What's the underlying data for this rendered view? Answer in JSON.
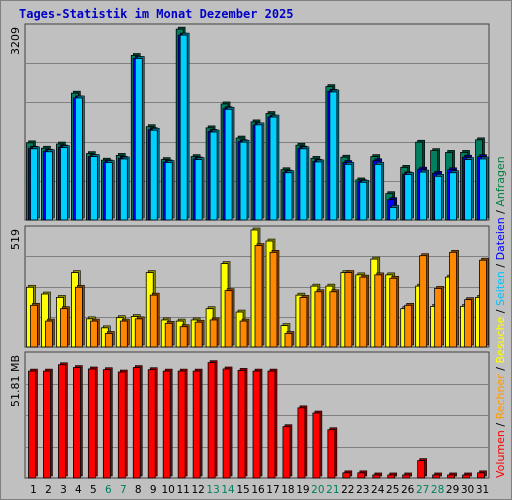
{
  "title": "Tages-Statistik im Monat Dezember 2025",
  "panel_labels": {
    "hits_max": "3209",
    "visits_max": "519",
    "volume_max": "51.81 MB"
  },
  "legend": [
    {
      "text": "Volumen",
      "color": "#ff0000"
    },
    {
      "text": " / ",
      "color": "#000000"
    },
    {
      "text": "Rechner",
      "color": "#ff9900"
    },
    {
      "text": " / ",
      "color": "#000000"
    },
    {
      "text": "Besuche",
      "color": "#ffff00"
    },
    {
      "text": " / ",
      "color": "#000000"
    },
    {
      "text": "Seiten",
      "color": "#00c0ff"
    },
    {
      "text": " / ",
      "color": "#000000"
    },
    {
      "text": "Dateien",
      "color": "#0000ff"
    },
    {
      "text": " / ",
      "color": "#000000"
    },
    {
      "text": "Anfragen",
      "color": "#008040"
    }
  ],
  "colors": {
    "anfragen": "#008060",
    "dateien": "#0000ff",
    "seiten": "#00d0ff",
    "besuche": "#ffff00",
    "rechner": "#ff8800",
    "volumen": "#ff0000",
    "day_normal": "#000000",
    "day_weekend": "#008060",
    "title": "#0000c8",
    "grid": "#808080"
  },
  "chart_data": [
    {
      "type": "bar",
      "name": "hits",
      "ylim": [
        0,
        3209
      ],
      "ylabel": "3209",
      "categories": [
        "1",
        "2",
        "3",
        "4",
        "5",
        "6",
        "7",
        "8",
        "9",
        "10",
        "11",
        "12",
        "13",
        "14",
        "15",
        "16",
        "17",
        "18",
        "19",
        "20",
        "21",
        "22",
        "23",
        "24",
        "25",
        "26",
        "27",
        "28",
        "29",
        "30",
        "31"
      ],
      "weekend_days": [
        "6",
        "7",
        "13",
        "14",
        "20",
        "21",
        "27",
        "28"
      ],
      "series": [
        {
          "name": "Anfragen",
          "values": [
            1290,
            1200,
            1270,
            2120,
            1110,
            1000,
            1080,
            2750,
            1560,
            1010,
            3190,
            1060,
            1540,
            1940,
            1370,
            1640,
            1780,
            840,
            1250,
            1030,
            2230,
            1050,
            670,
            1060,
            440,
            880,
            1300,
            1160,
            1130,
            1130,
            1340
          ]
        },
        {
          "name": "Dateien",
          "values": [
            1200,
            1150,
            1220,
            2040,
            1060,
            970,
            1030,
            2700,
            1510,
            970,
            3090,
            1020,
            1480,
            1860,
            1310,
            1590,
            1720,
            800,
            1200,
            980,
            2150,
            960,
            640,
            990,
            340,
            770,
            850,
            780,
            840,
            1050,
            1060
          ]
        },
        {
          "name": "Seiten",
          "values": [
            1190,
            1140,
            1210,
            2040,
            1060,
            960,
            1020,
            2700,
            1500,
            960,
            3090,
            1010,
            1470,
            1850,
            1300,
            1590,
            1720,
            790,
            1190,
            970,
            2140,
            930,
            630,
            930,
            210,
            760,
            800,
            730,
            790,
            1010,
            1020
          ]
        }
      ]
    },
    {
      "type": "bar",
      "name": "visits",
      "ylim": [
        0,
        519
      ],
      "ylabel": "519",
      "categories": [
        "1",
        "2",
        "3",
        "4",
        "5",
        "6",
        "7",
        "8",
        "9",
        "10",
        "11",
        "12",
        "13",
        "14",
        "15",
        "16",
        "17",
        "18",
        "19",
        "20",
        "21",
        "22",
        "23",
        "24",
        "25",
        "26",
        "27",
        "28",
        "29",
        "30",
        "31"
      ],
      "series": [
        {
          "name": "Besuche",
          "values": [
            265,
            235,
            220,
            330,
            125,
            85,
            130,
            135,
            330,
            120,
            115,
            120,
            170,
            370,
            155,
            519,
            470,
            95,
            230,
            270,
            270,
            330,
            320,
            390,
            320,
            170,
            270,
            180,
            310,
            180,
            220
          ]
        },
        {
          "name": "Rechner",
          "values": [
            185,
            115,
            170,
            265,
            115,
            60,
            115,
            125,
            230,
            105,
            90,
            110,
            120,
            250,
            115,
            450,
            420,
            60,
            220,
            245,
            245,
            330,
            310,
            320,
            305,
            185,
            405,
            260,
            420,
            210,
            385
          ]
        }
      ]
    },
    {
      "type": "bar",
      "name": "volume",
      "ylim": [
        0,
        51.81
      ],
      "ylabel": "51.81 MB",
      "unit": "MB",
      "categories": [
        "1",
        "2",
        "3",
        "4",
        "5",
        "6",
        "7",
        "8",
        "9",
        "10",
        "11",
        "12",
        "13",
        "14",
        "15",
        "16",
        "17",
        "18",
        "19",
        "20",
        "21",
        "22",
        "23",
        "24",
        "25",
        "26",
        "27",
        "28",
        "29",
        "30",
        "31"
      ],
      "series": [
        {
          "name": "Volumen",
          "values": [
            45.4,
            45.4,
            48.1,
            46.9,
            46.3,
            46.0,
            45.0,
            46.9,
            46.0,
            45.4,
            45.4,
            45.4,
            49.0,
            46.3,
            45.7,
            45.4,
            45.4,
            21.8,
            29.8,
            27.6,
            20.5,
            2.2,
            2.2,
            1.3,
            1.3,
            1.3,
            7.4,
            1.3,
            1.3,
            1.3,
            2.2
          ]
        }
      ]
    }
  ]
}
